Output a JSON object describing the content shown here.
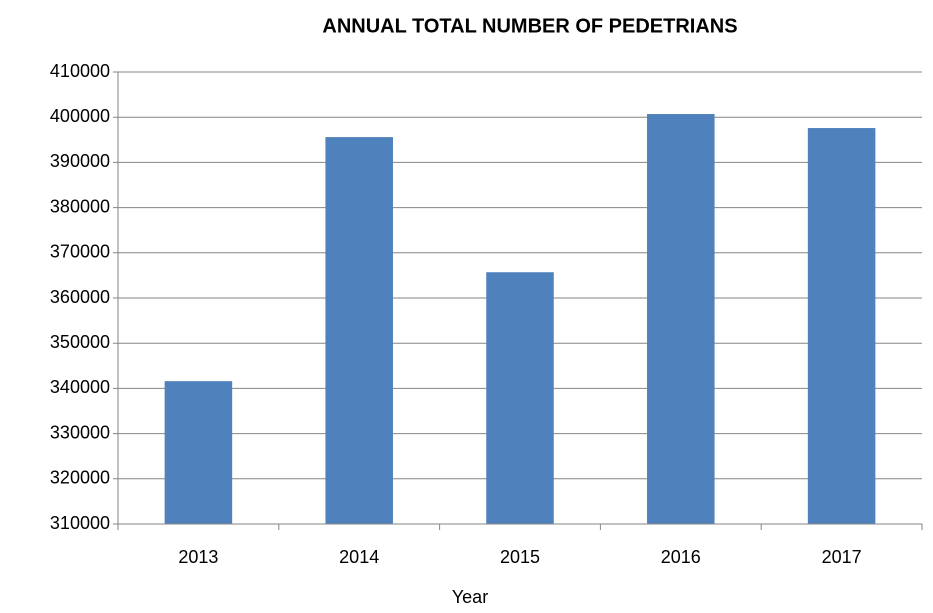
{
  "chart_data": {
    "type": "bar",
    "title": "ANNUAL TOTAL NUMBER OF PEDETRIANS",
    "x_label": "Year",
    "categories": [
      "2013",
      "2014",
      "2015",
      "2016",
      "2017"
    ],
    "values": [
      341600,
      395600,
      365700,
      400700,
      397600
    ],
    "color": "#4f81bd",
    "ylim": [
      310000,
      410000
    ],
    "yticks": [
      310000,
      320000,
      330000,
      340000,
      350000,
      360000,
      370000,
      380000,
      390000,
      400000,
      410000
    ],
    "grid": true
  }
}
